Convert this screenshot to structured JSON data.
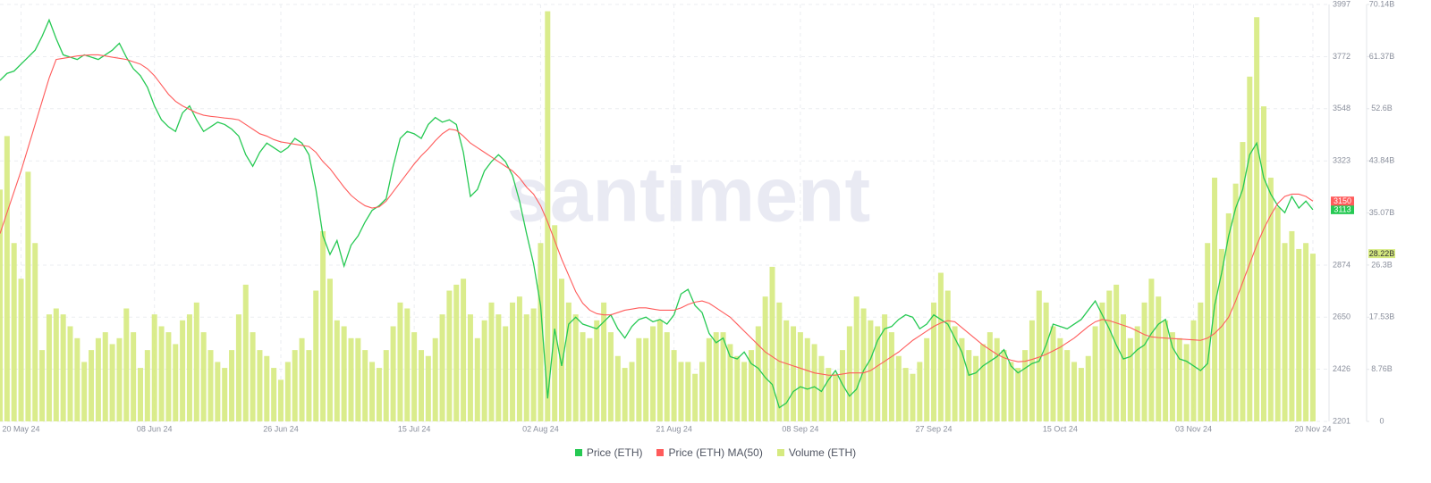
{
  "chart_data": {
    "type": "combo",
    "watermark": "santiment",
    "grid": true,
    "categories": [
      null,
      null,
      null,
      "20 May 24",
      null,
      null,
      null,
      null,
      null,
      null,
      null,
      null,
      null,
      null,
      null,
      null,
      null,
      null,
      null,
      null,
      null,
      null,
      "08 Jun 24",
      null,
      null,
      null,
      null,
      null,
      null,
      null,
      null,
      null,
      null,
      null,
      null,
      null,
      null,
      null,
      null,
      null,
      "26 Jun 24",
      null,
      null,
      null,
      null,
      null,
      null,
      null,
      null,
      null,
      null,
      null,
      null,
      null,
      null,
      null,
      null,
      null,
      null,
      "15 Jul 24",
      null,
      null,
      null,
      null,
      null,
      null,
      null,
      null,
      null,
      null,
      null,
      null,
      null,
      null,
      null,
      null,
      null,
      "02 Aug 24",
      null,
      null,
      null,
      null,
      null,
      null,
      null,
      null,
      null,
      null,
      null,
      null,
      null,
      null,
      null,
      null,
      null,
      null,
      "21 Aug 24",
      null,
      null,
      null,
      null,
      null,
      null,
      null,
      null,
      null,
      null,
      null,
      null,
      null,
      null,
      null,
      null,
      null,
      "08 Sep 24",
      null,
      null,
      null,
      null,
      null,
      null,
      null,
      null,
      null,
      null,
      null,
      null,
      null,
      null,
      null,
      null,
      null,
      null,
      "27 Sep 24",
      null,
      null,
      null,
      null,
      null,
      null,
      null,
      null,
      null,
      null,
      null,
      null,
      null,
      null,
      null,
      null,
      null,
      "15 Oct 24",
      null,
      null,
      null,
      null,
      null,
      null,
      null,
      null,
      null,
      null,
      null,
      null,
      null,
      null,
      null,
      null,
      null,
      null,
      "03 Nov 24",
      null,
      null,
      null,
      null,
      null,
      null,
      null,
      null,
      null,
      null,
      null,
      null,
      null,
      null,
      null,
      null,
      "20 Nov 24"
    ],
    "ylim": [
      2201,
      3997
    ],
    "yticks": [
      2201,
      2426,
      2650,
      2874,
      3323,
      3548,
      3772,
      3997
    ],
    "y2lim": [
      0,
      70.14
    ],
    "y2ticks": [
      0,
      {
        "value": 8.76,
        "label": "8.76B"
      },
      {
        "value": 17.53,
        "label": "17.53B"
      },
      {
        "value": 26.3,
        "label": "26.3B"
      },
      {
        "value": 35.07,
        "label": "35.07B"
      },
      {
        "value": 43.84,
        "label": "43.84B"
      },
      {
        "value": 52.6,
        "label": "52.6B"
      },
      {
        "value": 61.37,
        "label": "61.37B"
      },
      {
        "value": 70.14,
        "label": "70.14B"
      }
    ],
    "series": [
      {
        "name": "Price (ETH)",
        "type": "line",
        "color": "#26c953",
        "end_label": "3113",
        "values": [
          3670,
          3700,
          3710,
          3740,
          3770,
          3800,
          3860,
          3930,
          3850,
          3780,
          3770,
          3760,
          3780,
          3770,
          3760,
          3780,
          3800,
          3830,
          3770,
          3720,
          3690,
          3640,
          3560,
          3500,
          3470,
          3450,
          3530,
          3560,
          3500,
          3450,
          3470,
          3490,
          3480,
          3460,
          3430,
          3350,
          3300,
          3360,
          3400,
          3380,
          3360,
          3380,
          3420,
          3400,
          3350,
          3200,
          3000,
          2920,
          2980,
          2870,
          2960,
          3000,
          3060,
          3110,
          3130,
          3160,
          3300,
          3420,
          3450,
          3440,
          3420,
          3480,
          3510,
          3490,
          3500,
          3480,
          3360,
          3170,
          3200,
          3280,
          3320,
          3350,
          3320,
          3260,
          3150,
          3010,
          2880,
          2700,
          2300,
          2600,
          2440,
          2620,
          2650,
          2620,
          2610,
          2600,
          2630,
          2660,
          2600,
          2560,
          2610,
          2640,
          2650,
          2630,
          2640,
          2620,
          2660,
          2750,
          2770,
          2700,
          2670,
          2580,
          2540,
          2560,
          2480,
          2470,
          2500,
          2450,
          2430,
          2390,
          2360,
          2260,
          2280,
          2330,
          2350,
          2340,
          2350,
          2330,
          2380,
          2420,
          2360,
          2310,
          2340,
          2420,
          2470,
          2550,
          2600,
          2610,
          2640,
          2660,
          2650,
          2600,
          2620,
          2660,
          2640,
          2620,
          2560,
          2500,
          2400,
          2410,
          2440,
          2460,
          2480,
          2510,
          2440,
          2410,
          2430,
          2450,
          2460,
          2530,
          2620,
          2610,
          2600,
          2620,
          2640,
          2680,
          2720,
          2660,
          2600,
          2530,
          2470,
          2480,
          2510,
          2530,
          2580,
          2620,
          2640,
          2520,
          2470,
          2460,
          2440,
          2420,
          2450,
          2700,
          2840,
          3000,
          3120,
          3200,
          3350,
          3400,
          3250,
          3180,
          3130,
          3100,
          3170,
          3120,
          3150,
          3113
        ]
      },
      {
        "name": "Price (ETH) MA(50)",
        "type": "line",
        "color": "#ff5b5b",
        "end_label": "3150",
        "values": [
          3010,
          3100,
          3190,
          3280,
          3380,
          3480,
          3580,
          3680,
          3760,
          3765,
          3770,
          3775,
          3778,
          3780,
          3780,
          3775,
          3770,
          3765,
          3760,
          3750,
          3740,
          3720,
          3690,
          3650,
          3610,
          3580,
          3560,
          3545,
          3530,
          3520,
          3515,
          3512,
          3508,
          3505,
          3500,
          3480,
          3460,
          3440,
          3430,
          3415,
          3405,
          3400,
          3395,
          3390,
          3385,
          3360,
          3320,
          3290,
          3250,
          3210,
          3175,
          3150,
          3130,
          3120,
          3125,
          3150,
          3190,
          3230,
          3270,
          3310,
          3345,
          3375,
          3410,
          3440,
          3460,
          3455,
          3430,
          3400,
          3380,
          3360,
          3340,
          3320,
          3300,
          3280,
          3250,
          3210,
          3180,
          3130,
          3060,
          2980,
          2900,
          2830,
          2760,
          2710,
          2680,
          2665,
          2660,
          2660,
          2670,
          2680,
          2685,
          2690,
          2690,
          2685,
          2680,
          2680,
          2680,
          2690,
          2705,
          2715,
          2720,
          2710,
          2690,
          2670,
          2650,
          2620,
          2590,
          2560,
          2530,
          2500,
          2480,
          2460,
          2450,
          2440,
          2430,
          2420,
          2410,
          2405,
          2400,
          2400,
          2405,
          2410,
          2410,
          2410,
          2420,
          2440,
          2460,
          2480,
          2500,
          2525,
          2550,
          2570,
          2590,
          2610,
          2625,
          2635,
          2630,
          2605,
          2580,
          2555,
          2530,
          2510,
          2490,
          2475,
          2465,
          2458,
          2460,
          2468,
          2478,
          2490,
          2505,
          2520,
          2540,
          2560,
          2585,
          2610,
          2630,
          2640,
          2635,
          2625,
          2615,
          2605,
          2590,
          2575,
          2565,
          2562,
          2560,
          2558,
          2556,
          2554,
          2552,
          2550,
          2560,
          2580,
          2610,
          2650,
          2720,
          2800,
          2880,
          2960,
          3030,
          3090,
          3140,
          3170,
          3180,
          3180,
          3170,
          3150
        ]
      },
      {
        "name": "Volume (ETH)",
        "type": "bar",
        "axis": "y2",
        "color": "#d6ea80",
        "end_label": "28.22B",
        "values": [
          39,
          48,
          30,
          24,
          42,
          30,
          12,
          18,
          19,
          18,
          16,
          14,
          10,
          12,
          14,
          15,
          13,
          14,
          19,
          15,
          9,
          12,
          18,
          16,
          15,
          13,
          17,
          18,
          20,
          15,
          12,
          10,
          9,
          12,
          18,
          23,
          15,
          12,
          11,
          9,
          7,
          10,
          12,
          14,
          12,
          22,
          32,
          24,
          17,
          16,
          14,
          14,
          12,
          10,
          9,
          12,
          16,
          20,
          19,
          15,
          12,
          11,
          14,
          18,
          22,
          23,
          24,
          18,
          14,
          17,
          20,
          18,
          16,
          20,
          21,
          18,
          19,
          30,
          69,
          33,
          24,
          20,
          18,
          15,
          14,
          17,
          20,
          15,
          11,
          9,
          10,
          14,
          14,
          16,
          17,
          15,
          12,
          10,
          10,
          8,
          10,
          14,
          15,
          15,
          13,
          11,
          10,
          12,
          16,
          21,
          26,
          20,
          17,
          16,
          15,
          14,
          13,
          11,
          9,
          8,
          12,
          16,
          21,
          19,
          17,
          16,
          18,
          15,
          11,
          9,
          8,
          10,
          14,
          20,
          25,
          22,
          16,
          14,
          12,
          11,
          13,
          15,
          14,
          12,
          10,
          9,
          12,
          17,
          22,
          20,
          16,
          14,
          12,
          10,
          9,
          11,
          16,
          20,
          22,
          23,
          18,
          14,
          16,
          20,
          24,
          21,
          17,
          15,
          14,
          13,
          17,
          20,
          30,
          41,
          29,
          35,
          40,
          47,
          58,
          68,
          53,
          41,
          36,
          30,
          32,
          29,
          30,
          28.22
        ]
      }
    ]
  }
}
